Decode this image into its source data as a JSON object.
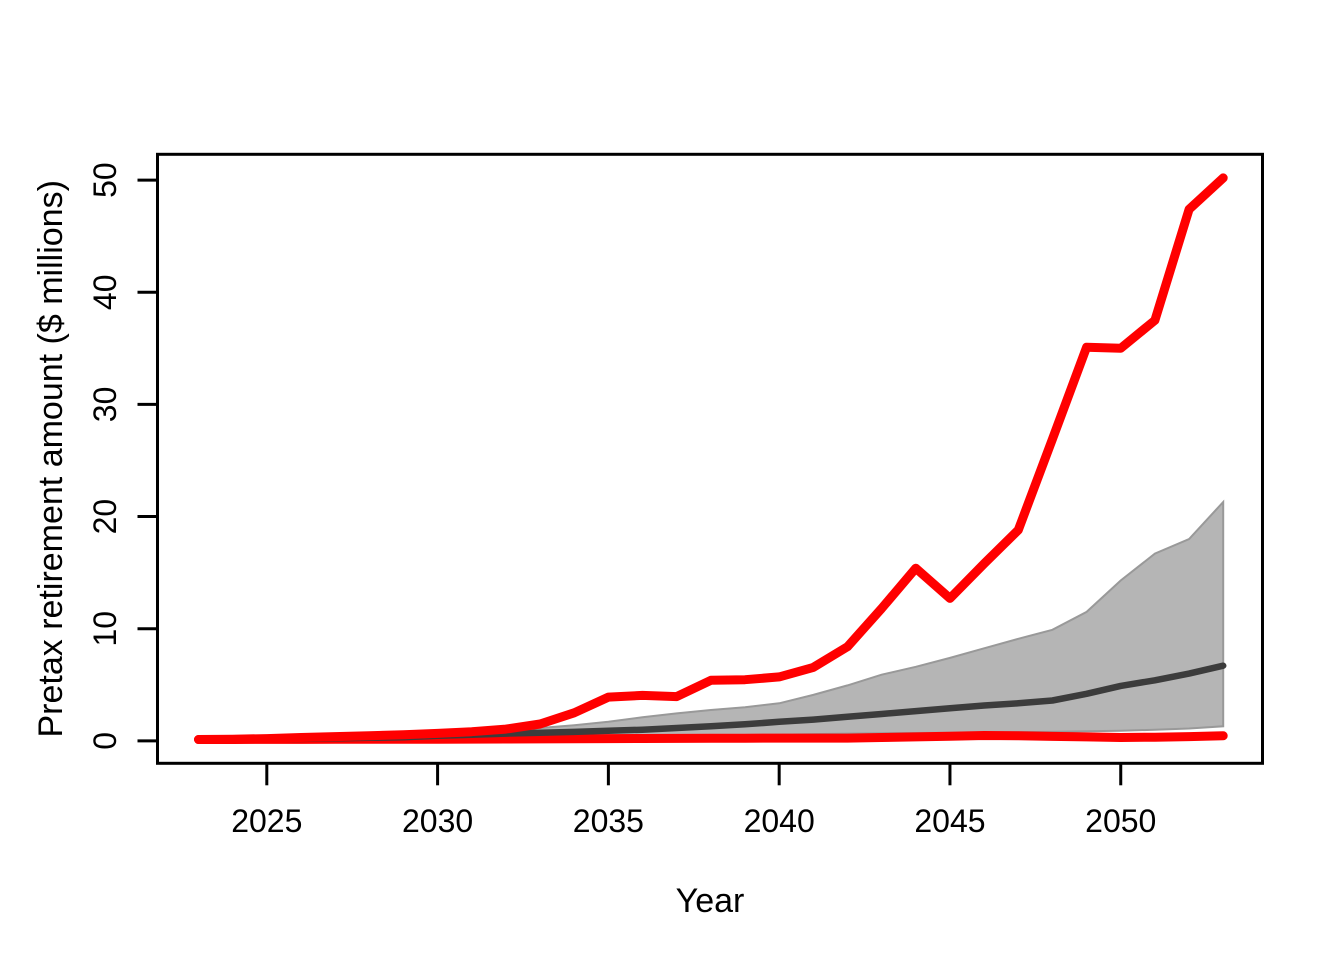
{
  "figure": {
    "background": "#ffffff",
    "axis_color": "#000000"
  },
  "chart_data": {
    "type": "line",
    "title": "",
    "xlabel": "Year",
    "ylabel": "Pretax retirement amount ($ millions)",
    "x": [
      2023,
      2024,
      2025,
      2026,
      2027,
      2028,
      2029,
      2030,
      2031,
      2032,
      2033,
      2034,
      2035,
      2036,
      2037,
      2038,
      2039,
      2040,
      2041,
      2042,
      2043,
      2044,
      2045,
      2046,
      2047,
      2048,
      2049,
      2050,
      2051,
      2052,
      2053
    ],
    "band": {
      "name": "percentile-band",
      "fill": "#b5b5b5",
      "stroke": "#999999",
      "stroke_width": 2,
      "upper": [
        0.15,
        0.2,
        0.25,
        0.3,
        0.38,
        0.46,
        0.6,
        0.76,
        0.86,
        0.96,
        1.15,
        1.4,
        1.7,
        2.1,
        2.45,
        2.75,
        3.0,
        3.35,
        4.1,
        4.95,
        5.9,
        6.6,
        7.4,
        8.25,
        9.1,
        9.9,
        11.5,
        14.3,
        16.7,
        18.0,
        21.3
      ],
      "lower": [
        0.1,
        0.11,
        0.12,
        0.14,
        0.16,
        0.18,
        0.25,
        0.33,
        0.37,
        0.4,
        0.42,
        0.45,
        0.46,
        0.47,
        0.49,
        0.5,
        0.52,
        0.55,
        0.6,
        0.65,
        0.68,
        0.7,
        0.72,
        0.75,
        0.78,
        0.8,
        0.85,
        0.9,
        1.0,
        1.1,
        1.3
      ]
    },
    "series": [
      {
        "name": "minimum-trajectory",
        "color": "#ff0000",
        "width": 9,
        "values": [
          0.12,
          0.12,
          0.13,
          0.13,
          0.14,
          0.14,
          0.15,
          0.15,
          0.16,
          0.17,
          0.18,
          0.19,
          0.2,
          0.21,
          0.22,
          0.23,
          0.24,
          0.25,
          0.25,
          0.25,
          0.3,
          0.35,
          0.42,
          0.48,
          0.45,
          0.4,
          0.35,
          0.3,
          0.33,
          0.38,
          0.45
        ]
      },
      {
        "name": "median-trajectory",
        "color": "#3c3c3c",
        "width": 6.5,
        "values": [
          0.1,
          0.12,
          0.15,
          0.18,
          0.22,
          0.27,
          0.33,
          0.45,
          0.55,
          0.65,
          0.73,
          0.8,
          0.9,
          1.0,
          1.15,
          1.3,
          1.48,
          1.7,
          1.9,
          2.15,
          2.4,
          2.65,
          2.9,
          3.15,
          3.35,
          3.6,
          4.2,
          4.9,
          5.4,
          6.0,
          6.7
        ]
      },
      {
        "name": "maximum-trajectory",
        "color": "#ff0000",
        "width": 9,
        "values": [
          0.12,
          0.15,
          0.2,
          0.3,
          0.38,
          0.46,
          0.55,
          0.67,
          0.82,
          1.05,
          1.5,
          2.5,
          3.9,
          4.05,
          3.95,
          5.4,
          5.45,
          5.7,
          6.55,
          8.4,
          11.8,
          15.4,
          12.7,
          15.8,
          18.8,
          26.9,
          35.1,
          35.0,
          37.5,
          47.4,
          50.2
        ]
      }
    ],
    "x_ticks": [
      2025,
      2030,
      2035,
      2040,
      2045,
      2050
    ],
    "y_ticks": [
      0,
      10,
      20,
      30,
      40,
      50
    ],
    "xlim": [
      2021.8,
      2054.15
    ],
    "ylim": [
      -2.0,
      52.3
    ],
    "grid": false,
    "legend": "none"
  }
}
